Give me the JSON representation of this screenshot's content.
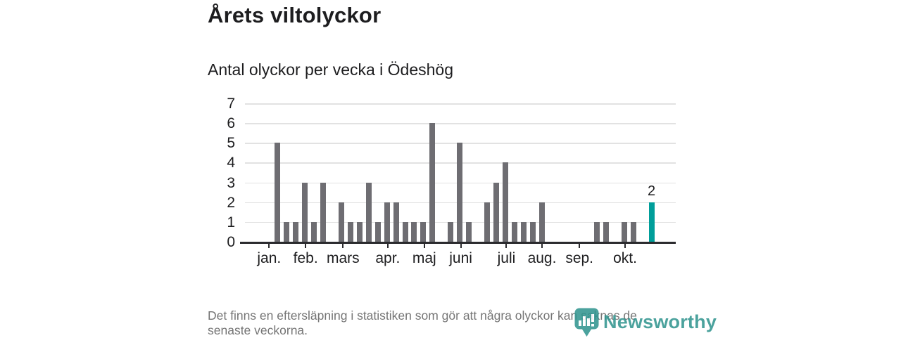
{
  "title": "Årets viltolyckor",
  "subtitle": "Antal olyckor per vecka i Ödeshög",
  "footer": {
    "lines": [
      "Det finns en eftersläpning i statistiken som gör att några olyckor kan saknas de",
      "senaste veckorna."
    ]
  },
  "logo": {
    "name": "Newsworthy",
    "icon": "newsworthy-pin-barchart-icon",
    "color": "#31958f"
  },
  "colors": {
    "bar": "#6e6d72",
    "bar_highlight": "#009e9a",
    "axis": "#2b2b2e",
    "gridline": "#e2e2e2",
    "text": "#1d1d1f",
    "footer_text": "#757575"
  },
  "chart_data": {
    "type": "bar",
    "title": "Årets viltolyckor",
    "subtitle": "Antal olyckor per vecka i Ödeshög",
    "x_unit": "vecka",
    "values": [
      5,
      1,
      1,
      3,
      1,
      3,
      0,
      2,
      1,
      1,
      3,
      1,
      2,
      2,
      1,
      1,
      1,
      6,
      0,
      1,
      5,
      1,
      0,
      2,
      3,
      4,
      1,
      1,
      1,
      2,
      0,
      0,
      0,
      0,
      0,
      1,
      1,
      0,
      1,
      1,
      0,
      2
    ],
    "highlight_last": true,
    "last_value_label": "2",
    "ylim": [
      0,
      7
    ],
    "yticks": [
      0,
      1,
      2,
      3,
      4,
      5,
      6,
      7
    ],
    "grid": "horizontal",
    "legend": "none",
    "month_ticks": [
      {
        "label": "jan.",
        "week": -0.9
      },
      {
        "label": "feb.",
        "week": 3.1
      },
      {
        "label": "mars",
        "week": 7.2
      },
      {
        "label": "apr.",
        "week": 12.1
      },
      {
        "label": "maj",
        "week": 16.1
      },
      {
        "label": "juni",
        "week": 20.1
      },
      {
        "label": "juli",
        "week": 25.1
      },
      {
        "label": "aug.",
        "week": 29.0
      },
      {
        "label": "sep.",
        "week": 33.1
      },
      {
        "label": "okt.",
        "week": 38.1
      }
    ]
  }
}
